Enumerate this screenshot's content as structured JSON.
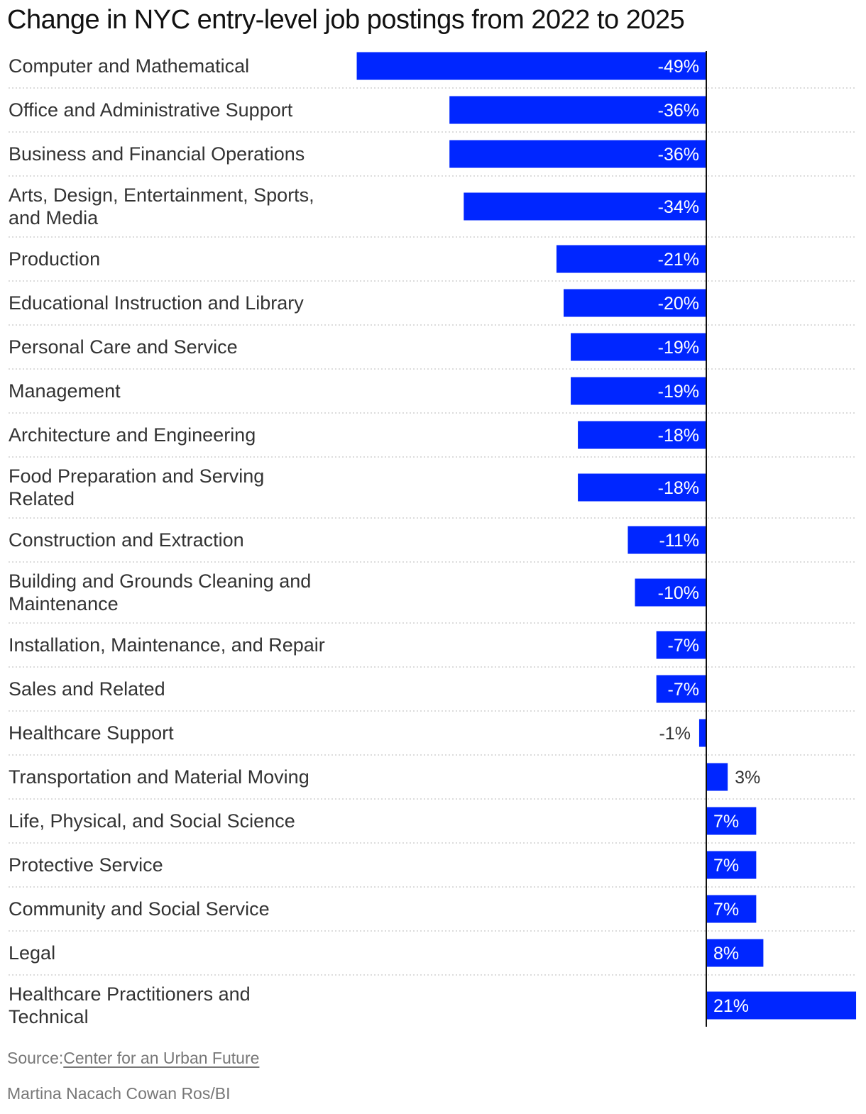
{
  "chart_data": {
    "type": "bar",
    "orientation": "horizontal",
    "title": "Change in NYC entry-level job postings from 2022 to 2025",
    "bar_color": "#0026ff",
    "categories": [
      [
        "Computer and Mathematical"
      ],
      [
        "Office and Administrative Support"
      ],
      [
        "Business and Financial Operations"
      ],
      [
        "Arts, Design, Entertainment, Sports,",
        "and Media"
      ],
      [
        "Production"
      ],
      [
        "Educational Instruction and Library"
      ],
      [
        "Personal Care and Service"
      ],
      [
        "Management"
      ],
      [
        "Architecture and Engineering"
      ],
      [
        "Food Preparation and Serving",
        "Related"
      ],
      [
        "Construction and Extraction"
      ],
      [
        "Building and Grounds Cleaning and",
        "Maintenance"
      ],
      [
        "Installation, Maintenance, and Repair"
      ],
      [
        "Sales and Related"
      ],
      [
        "Healthcare Support"
      ],
      [
        "Transportation and Material Moving"
      ],
      [
        "Life, Physical, and Social Science"
      ],
      [
        "Protective Service"
      ],
      [
        "Community and Social Service"
      ],
      [
        "Legal"
      ],
      [
        "Healthcare Practitioners and",
        "Technical"
      ]
    ],
    "values": [
      -49,
      -36,
      -36,
      -34,
      -21,
      -20,
      -19,
      -19,
      -18,
      -18,
      -11,
      -10,
      -7,
      -7,
      -1,
      3,
      7,
      7,
      7,
      8,
      21
    ],
    "value_labels": [
      "-49%",
      "-36%",
      "-36%",
      "-34%",
      "-21%",
      "-20%",
      "-19%",
      "-19%",
      "-18%",
      "-18%",
      "-11%",
      "-10%",
      "-7%",
      "-7%",
      "-1%",
      "3%",
      "7%",
      "7%",
      "7%",
      "8%",
      "21%"
    ],
    "xlim": [
      -49,
      21
    ],
    "unit": "%"
  },
  "source": {
    "prefix": "Source:",
    "link_text": "Center for an Urban Future"
  },
  "credit": "Martina Nacach Cowan Ros/BI"
}
